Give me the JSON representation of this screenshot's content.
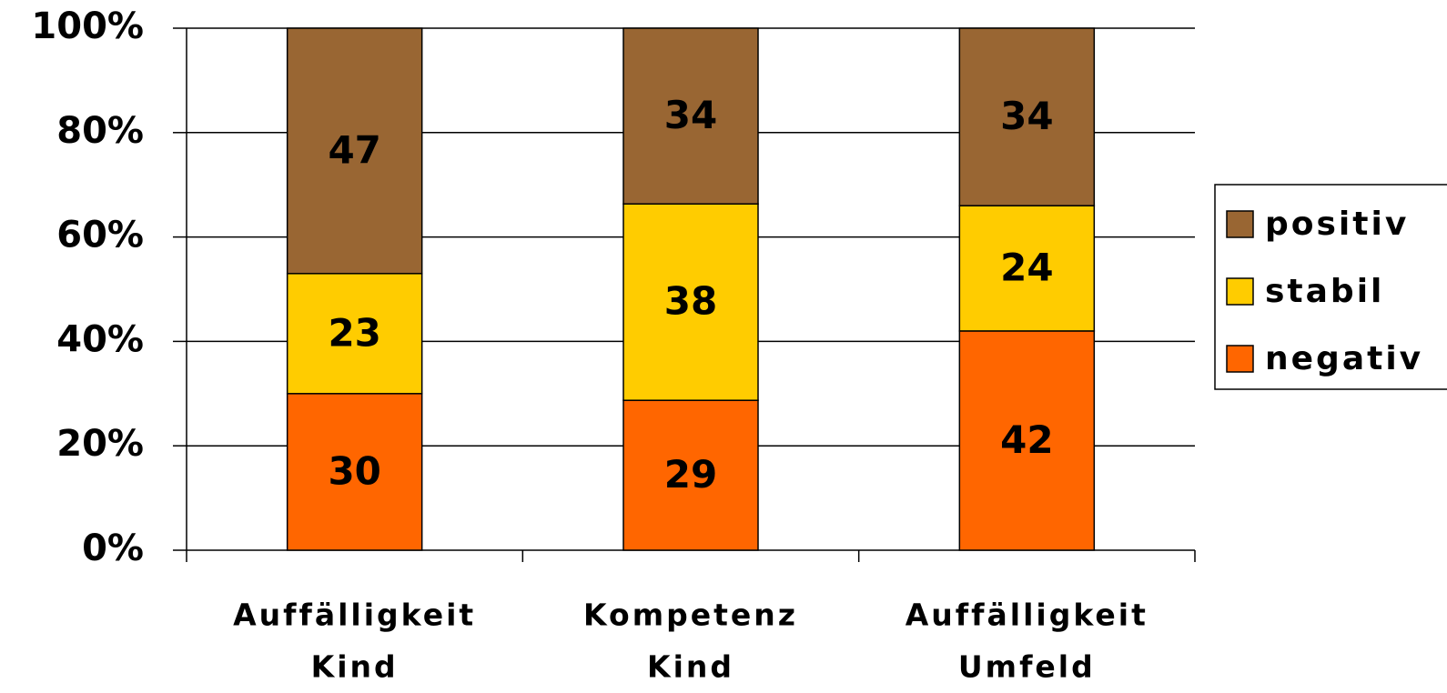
{
  "chart_data": {
    "type": "stacked_percent_bar",
    "categories": [
      [
        "Auffälligkeit",
        "Kind"
      ],
      [
        "Kompetenz",
        "Kind"
      ],
      [
        "Auffälligkeit",
        "Umfeld"
      ]
    ],
    "series": [
      {
        "name": "negativ",
        "color": "#ff6600",
        "values": [
          30,
          29,
          42
        ]
      },
      {
        "name": "stabil",
        "color": "#ffcc00",
        "values": [
          23,
          38,
          24
        ]
      },
      {
        "name": "positiv",
        "color": "#996633",
        "values": [
          47,
          34,
          34
        ]
      }
    ],
    "ylim": [
      0,
      100
    ],
    "yticks": [
      {
        "value": 0,
        "label": "0%"
      },
      {
        "value": 20,
        "label": "20%"
      },
      {
        "value": 40,
        "label": "40%"
      },
      {
        "value": 60,
        "label": "60%"
      },
      {
        "value": 80,
        "label": "80%"
      },
      {
        "value": 100,
        "label": "100%"
      }
    ],
    "grid": true,
    "legend": "right"
  }
}
